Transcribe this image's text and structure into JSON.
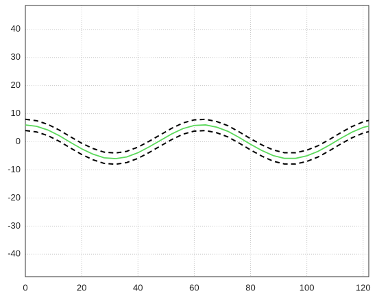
{
  "chart_data": {
    "type": "line",
    "x": [
      0,
      4,
      8,
      12,
      16,
      20,
      24,
      28,
      32,
      36,
      40,
      44,
      48,
      52,
      56,
      60,
      64,
      68,
      72,
      76,
      80,
      84,
      88,
      92,
      96,
      100,
      104,
      108,
      112,
      116,
      120,
      122
    ],
    "series": [
      {
        "color": "#000000",
        "dash": "dashed",
        "values": [
          8,
          7.5,
          6.2,
          4.2,
          1.8,
          -0.5,
          -2.4,
          -3.7,
          -4,
          -3.4,
          -1.9,
          0.2,
          2.5,
          4.8,
          6.7,
          7.8,
          8,
          7.2,
          5.7,
          3.5,
          1.1,
          -1.1,
          -2.9,
          -3.9,
          -3.9,
          -3,
          -1.4,
          0.8,
          3.2,
          5.4,
          7.1,
          7.6
        ]
      },
      {
        "color": "#5ad85a",
        "dash": "solid",
        "values": [
          6,
          5.5,
          4.2,
          2.2,
          -0.2,
          -2.5,
          -4.4,
          -5.7,
          -6,
          -5.4,
          -3.9,
          -1.8,
          0.5,
          2.8,
          4.7,
          5.8,
          6,
          5.2,
          3.7,
          1.5,
          -0.9,
          -3.1,
          -4.9,
          -5.9,
          -5.9,
          -5,
          -3.4,
          -1.2,
          1.2,
          3.4,
          5.1,
          5.6
        ]
      },
      {
        "color": "#000000",
        "dash": "dashed",
        "values": [
          4,
          3.5,
          2.2,
          0.2,
          -2.2,
          -4.5,
          -6.4,
          -7.7,
          -8,
          -7.4,
          -5.9,
          -3.8,
          -1.5,
          0.8,
          2.7,
          3.8,
          4,
          3.2,
          1.7,
          -0.5,
          -2.9,
          -5.1,
          -6.9,
          -7.9,
          -7.9,
          -7,
          -5.4,
          -3.2,
          -0.8,
          1.4,
          3.1,
          3.6
        ]
      }
    ],
    "xlim": [
      0,
      122
    ],
    "xticks": [
      0,
      20,
      40,
      60,
      80,
      100,
      120
    ],
    "ylim": [
      -48,
      48.5
    ],
    "yticks": [
      -40,
      -30,
      -20,
      -10,
      0,
      10,
      20,
      30,
      40
    ],
    "grid": true
  }
}
